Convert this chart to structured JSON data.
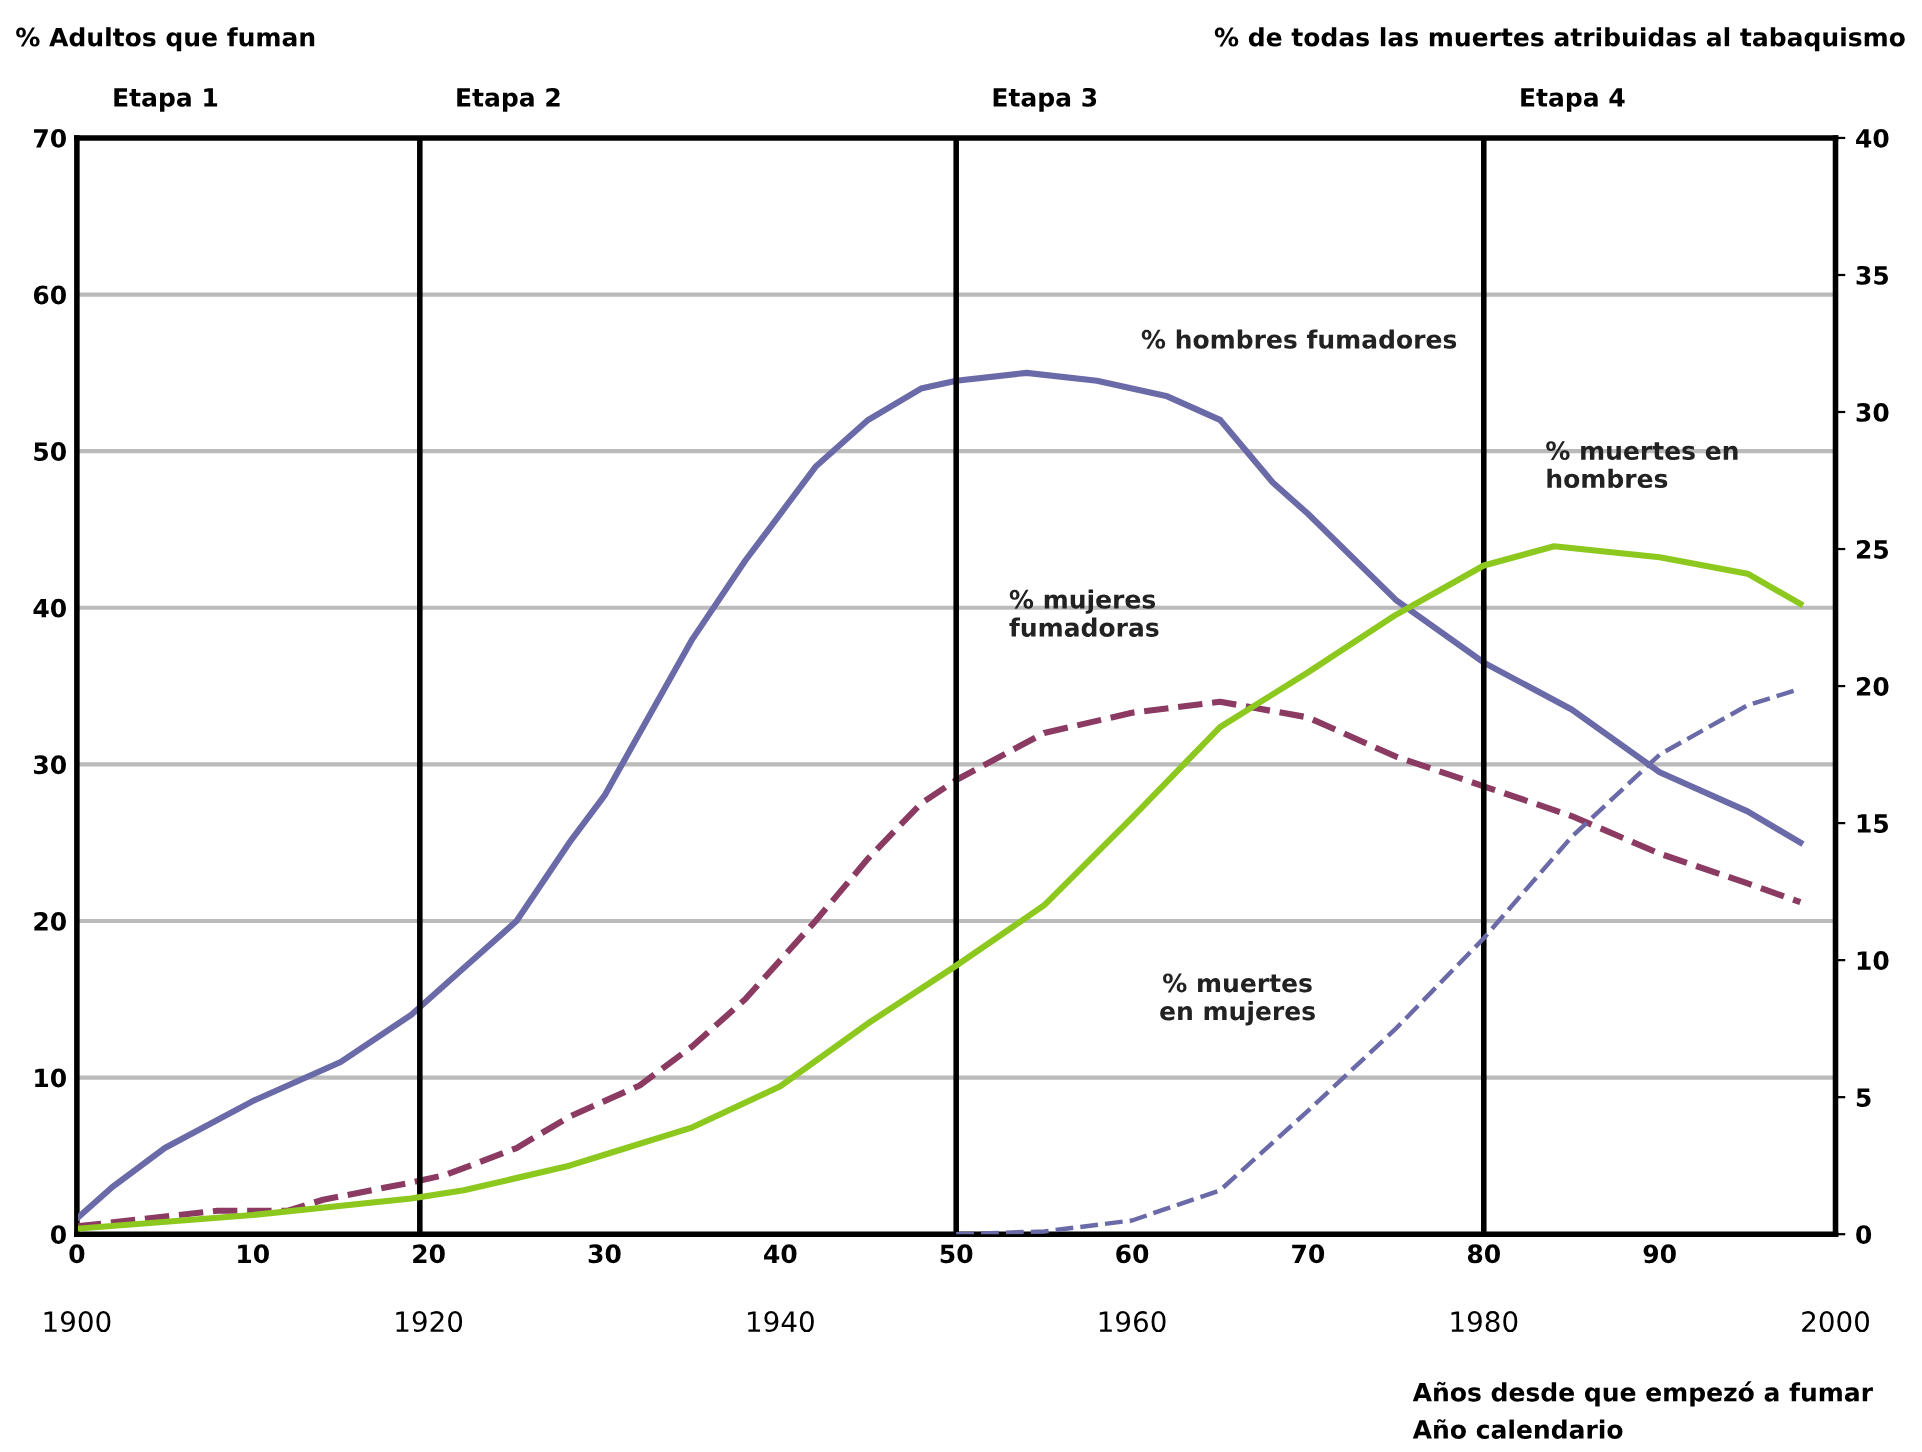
{
  "chart_data": {
    "type": "line",
    "ylabel": "% Adultos que fuman",
    "y2label": "% de todas las muertes atribuidas al tabaquismo",
    "xlabel": "Años desde que empezó a fumar",
    "x2label": "Año calendario",
    "annotations": [
      "Etapa 1",
      "Etapa 2",
      "Etapa 3",
      "Etapa 4"
    ],
    "xlim": [
      0,
      100
    ],
    "xticks": [
      0,
      10,
      20,
      30,
      40,
      50,
      60,
      70,
      80,
      90
    ],
    "x2lim": [
      1900,
      2000
    ],
    "x2ticks": [
      1900,
      1920,
      1940,
      1960,
      1980,
      2000
    ],
    "ylim": [
      0,
      70
    ],
    "yticks": [
      0,
      10,
      20,
      30,
      40,
      50,
      60,
      70
    ],
    "y2lim": [
      0,
      40
    ],
    "y2ticks": [
      0,
      5,
      10,
      15,
      20,
      25,
      30,
      35,
      40
    ],
    "grid": "y",
    "ref_lines": [
      {
        "axis": "x",
        "value": 19.5,
        "color": "#000000"
      },
      {
        "axis": "x",
        "value": 50,
        "color": "#000000"
      },
      {
        "axis": "x",
        "value": 80,
        "color": "#000000"
      }
    ],
    "series": [
      {
        "name": "% hombres fumadores",
        "color": "#6b6aa8",
        "line_style": "solid",
        "x": [
          0,
          2,
          5,
          10,
          15,
          19,
          22,
          25,
          28,
          30,
          32,
          35,
          38,
          40,
          42,
          45,
          48,
          50,
          54,
          58,
          62,
          65,
          68,
          70,
          75,
          80,
          85,
          90,
          95,
          98
        ],
        "values": [
          1,
          3,
          5.5,
          8.5,
          11,
          14,
          17,
          20,
          25,
          28,
          32,
          38,
          43,
          46,
          49,
          52,
          54,
          54.5,
          55,
          54.5,
          53.5,
          52,
          48,
          46,
          40.5,
          36.5,
          33.5,
          29.5,
          27,
          25
        ]
      },
      {
        "name": "% mujeres fumadoras",
        "color": "#8b3a62",
        "line_style": "dashed",
        "x": [
          0,
          8,
          12,
          14,
          19,
          21,
          25,
          28,
          32,
          35,
          38,
          40,
          42,
          45,
          48,
          50,
          55,
          60,
          65,
          70,
          75,
          80,
          85,
          90,
          95,
          98
        ],
        "values": [
          0.5,
          1.5,
          1.5,
          2.2,
          3.3,
          3.8,
          5.5,
          7.5,
          9.5,
          12,
          15,
          17.5,
          20,
          24,
          27.5,
          29,
          32,
          33.3,
          34,
          33,
          30.5,
          28.6,
          26.7,
          24.3,
          22.4,
          21.2
        ]
      },
      {
        "name": "% muertes en hombres",
        "color": "#8cc81e",
        "line_style": "solid",
        "axis": "y2",
        "x": [
          0,
          10,
          19,
          22,
          28,
          30,
          35,
          40,
          45,
          50,
          55,
          60,
          65,
          70,
          75,
          80,
          84,
          90,
          95,
          98
        ],
        "values": [
          0.2,
          0.7,
          1.3,
          1.6,
          2.5,
          2.9,
          3.9,
          5.4,
          7.7,
          9.8,
          12,
          15.2,
          18.5,
          20.5,
          22.6,
          24.4,
          25.1,
          24.7,
          24.1,
          23
        ]
      },
      {
        "name": "% muertes en mujeres",
        "color": "#6b6aa8",
        "line_style": "dashed",
        "axis": "y2",
        "x": [
          50,
          55,
          60,
          65,
          70,
          75,
          80,
          85,
          90,
          95,
          98
        ],
        "values": [
          0,
          0.1,
          0.5,
          1.6,
          4.5,
          7.5,
          10.8,
          14.5,
          17.5,
          19.3,
          19.9
        ]
      }
    ]
  }
}
